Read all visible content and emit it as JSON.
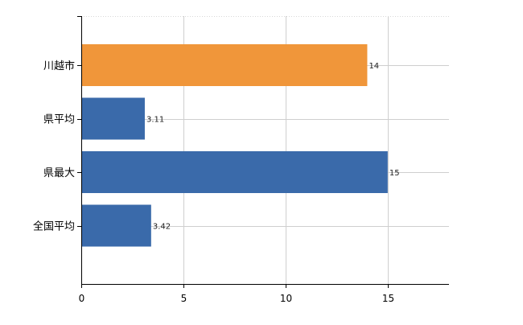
{
  "chart_data": {
    "type": "bar",
    "orientation": "horizontal",
    "categories": [
      "川越市",
      "県平均",
      "県最大",
      "全国平均"
    ],
    "values": [
      14,
      3.11,
      15,
      3.42
    ],
    "value_labels": [
      "14",
      "3.11",
      "15",
      "3.42"
    ],
    "bar_colors": [
      "#f0963a",
      "#3a6aaa",
      "#3a6aaa",
      "#3a6aaa"
    ],
    "highlight_color": "#f0963a",
    "base_color": "#3a6aaa",
    "title": "",
    "xlabel": "",
    "ylabel": "",
    "xlim": [
      0,
      18
    ],
    "xticks": [
      0,
      5,
      10,
      15
    ],
    "xtick_labels": [
      "0",
      "5",
      "10",
      "15"
    ],
    "grid": true,
    "legend": false
  }
}
